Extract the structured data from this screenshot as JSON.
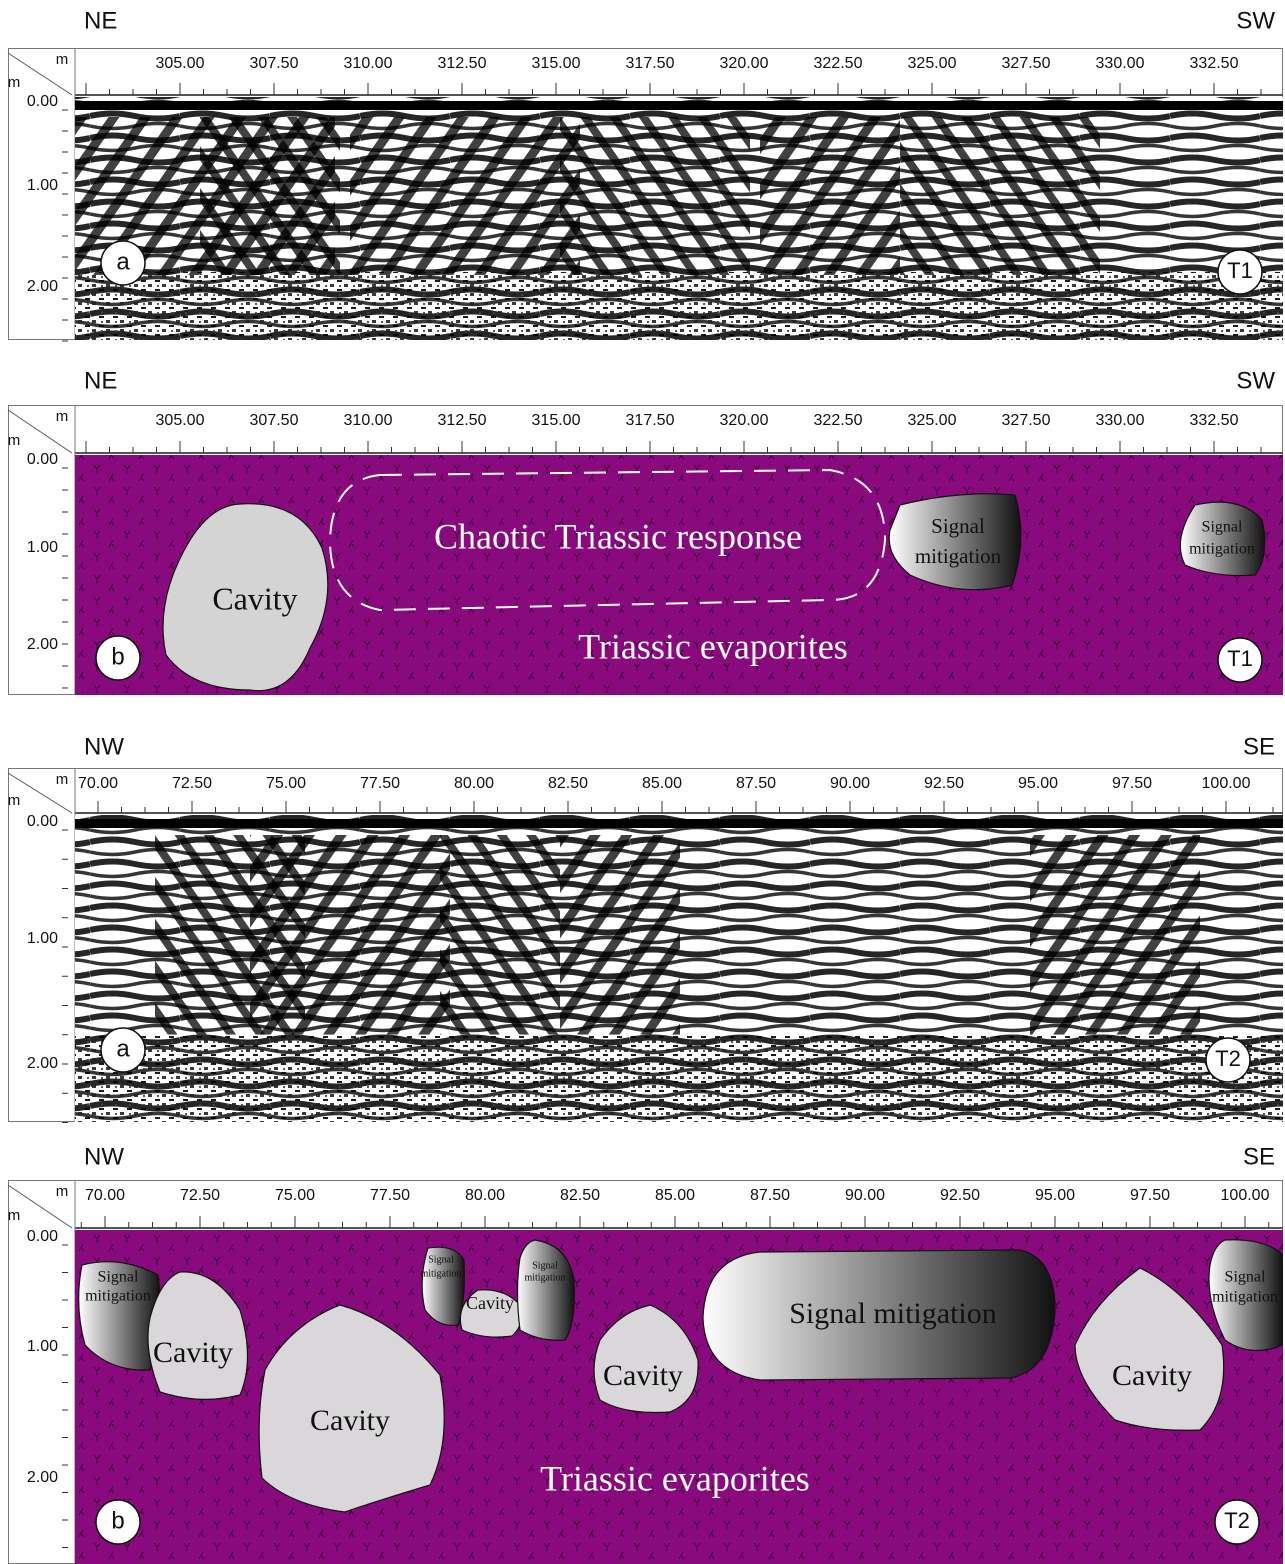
{
  "panels": [
    {
      "direction_left": "NE",
      "direction_right": "SW",
      "unit_x": "m",
      "unit_y": "m",
      "x_tick_labels": [
        "305.00",
        "307.50",
        "310.00",
        "312.50",
        "315.00",
        "317.50",
        "320.00",
        "322.50",
        "325.00",
        "327.50",
        "330.00",
        "332.50"
      ],
      "depth_labels": [
        "0.00",
        "1.00",
        "2.00"
      ],
      "panel_letter": "a",
      "profile": "T1"
    },
    {
      "direction_left": "NE",
      "direction_right": "SW",
      "unit_x": "m",
      "unit_y": "m",
      "x_tick_labels": [
        "305.00",
        "307.50",
        "310.00",
        "312.50",
        "315.00",
        "317.50",
        "320.00",
        "322.50",
        "325.00",
        "327.50",
        "330.00",
        "332.50"
      ],
      "depth_labels": [
        "0.00",
        "1.00",
        "2.00"
      ],
      "panel_letter": "b",
      "profile": "T1",
      "annotations": [
        {
          "text": [
            "Cavity"
          ]
        },
        {
          "text": [
            "Chaotic Triassic response"
          ]
        },
        {
          "text": [
            "Signal",
            "mitigation"
          ]
        },
        {
          "text": [
            "Signal",
            "mitigation"
          ]
        },
        {
          "text": [
            "Triassic evaporites"
          ]
        }
      ]
    },
    {
      "direction_left": "NW",
      "direction_right": "SE",
      "unit_x": "m",
      "unit_y": "m",
      "x_tick_labels": [
        "70.00",
        "72.50",
        "75.00",
        "77.50",
        "80.00",
        "82.50",
        "85.00",
        "87.50",
        "90.00",
        "92.50",
        "95.00",
        "97.50",
        "100.00"
      ],
      "depth_labels": [
        "0.00",
        "1.00",
        "2.00"
      ],
      "panel_letter": "a",
      "profile": "T2"
    },
    {
      "direction_left": "NW",
      "direction_right": "SE",
      "unit_x": "m",
      "unit_y": "m",
      "x_tick_labels": [
        "70.00",
        "72.50",
        "75.00",
        "77.50",
        "80.00",
        "82.50",
        "85.00",
        "87.50",
        "90.00",
        "92.50",
        "95.00",
        "97.50",
        "100.00"
      ],
      "depth_labels": [
        "0.00",
        "1.00",
        "2.00"
      ],
      "panel_letter": "b",
      "profile": "T2",
      "annotations": [
        {
          "text": [
            "Signal",
            "mitigation"
          ]
        },
        {
          "text": [
            "Cavity"
          ]
        },
        {
          "text": [
            "Cavity"
          ]
        },
        {
          "text": [
            "Signal",
            "mitigation"
          ]
        },
        {
          "text": [
            "Cavity"
          ]
        },
        {
          "text": [
            "Signal",
            "mitigation"
          ]
        },
        {
          "text": [
            "Cavity"
          ]
        },
        {
          "text": [
            "Signal mitigation"
          ]
        },
        {
          "text": [
            "Cavity"
          ]
        },
        {
          "text": [
            "Signal",
            "mitigation"
          ]
        },
        {
          "text": [
            "Triassic evaporites"
          ]
        }
      ]
    }
  ]
}
